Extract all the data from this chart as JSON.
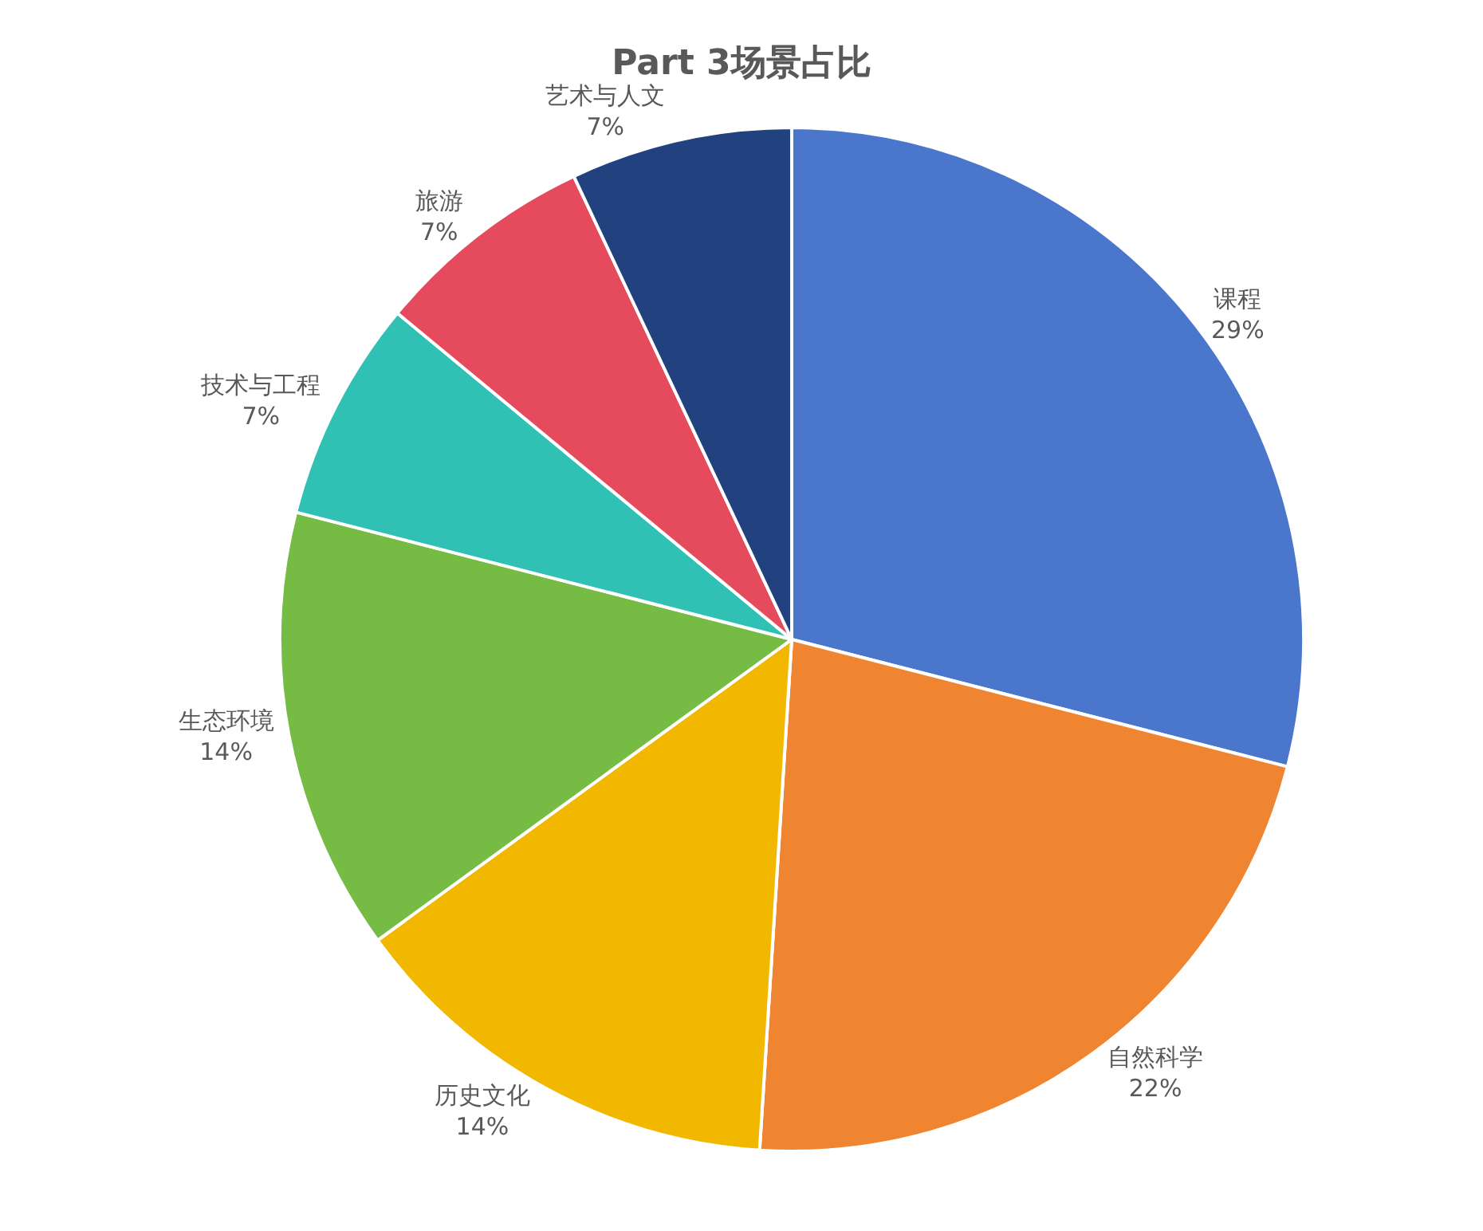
{
  "chart_data": {
    "type": "pie",
    "title": "Part 3场景占比",
    "categories": [
      "课程",
      "自然科学",
      "历史文化",
      "生态环境",
      "技术与工程",
      "旅游",
      "艺术与人文"
    ],
    "values": [
      29,
      22,
      14,
      14,
      7,
      7,
      7
    ],
    "value_labels": [
      "29%",
      "22%",
      "14%",
      "14%",
      "7%",
      "7%",
      "7%"
    ],
    "colors": [
      "#4a76cc",
      "#ef8431",
      "#f2b800",
      "#76bb43",
      "#30c0b4",
      "#e64b5d",
      "#22417f"
    ],
    "legend": false
  }
}
